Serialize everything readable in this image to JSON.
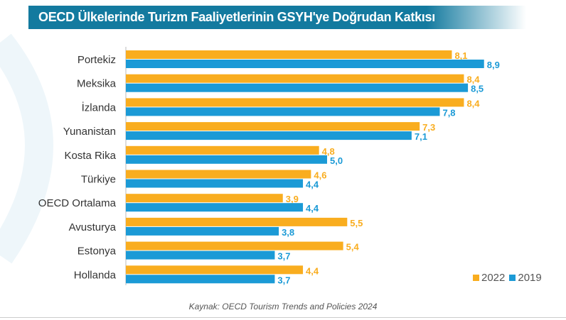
{
  "chart_data": {
    "type": "bar",
    "orientation": "horizontal",
    "title": "OECD Ülkelerinde Turizm Faaliyetlerinin GSYH'ye Doğrudan Katkısı",
    "categories": [
      "Portekiz",
      "Meksika",
      "İzlanda",
      "Yunanistan",
      "Kosta Rika",
      "Türkiye",
      "OECD Ortalama",
      "Avusturya",
      "Estonya",
      "Hollanda"
    ],
    "series": [
      {
        "name": "2022",
        "color": "#f9ad1f",
        "values": [
          8.1,
          8.4,
          8.4,
          7.3,
          4.8,
          4.6,
          3.9,
          5.5,
          5.4,
          4.4
        ],
        "labels": [
          "8,1",
          "8,4",
          "8,4",
          "7,3",
          "4,8",
          "4,6",
          "3,9",
          "5,5",
          "5,4",
          "4,4"
        ]
      },
      {
        "name": "2019",
        "color": "#1b9ad6",
        "values": [
          8.9,
          8.5,
          7.8,
          7.1,
          5.0,
          4.4,
          4.4,
          3.8,
          3.7,
          3.7
        ],
        "labels": [
          "8,9",
          "8,5",
          "7,8",
          "7,1",
          "5,0",
          "4,4",
          "4,4",
          "3,8",
          "3,7",
          "3,7"
        ]
      }
    ],
    "xlim": [
      0,
      9
    ],
    "legend": "bottom-right",
    "source": "Kaynak: OECD Tourism Trends and Policies 2024"
  }
}
